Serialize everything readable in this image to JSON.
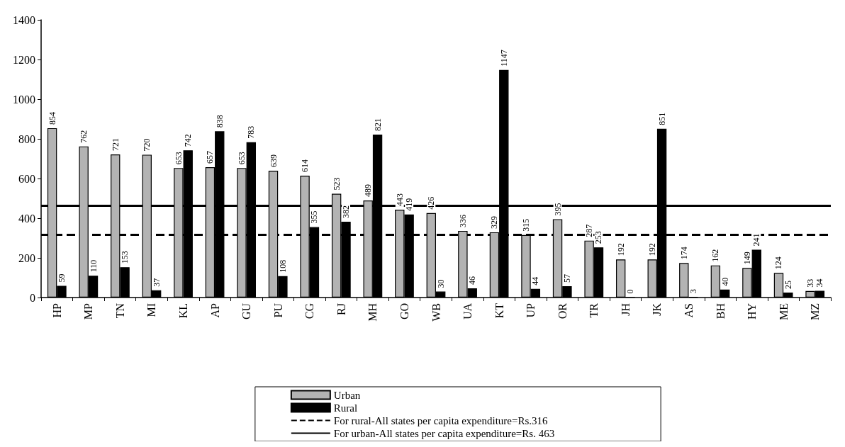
{
  "chart_data": {
    "type": "bar",
    "categories": [
      "HP",
      "MP",
      "TN",
      "MI",
      "KL",
      "AP",
      "GU",
      "PU",
      "CG",
      "RJ",
      "MH",
      "GO",
      "WB",
      "UA",
      "KT",
      "UP",
      "OR",
      "TR",
      "JH",
      "JK",
      "AS",
      "BH",
      "HY",
      "ME",
      "MZ"
    ],
    "series": [
      {
        "name": "Urban",
        "color": "#b3b3b3",
        "values": [
          854,
          762,
          721,
          720,
          653,
          657,
          653,
          639,
          614,
          523,
          489,
          443,
          426,
          336,
          329,
          315,
          395,
          287,
          192,
          192,
          174,
          162,
          149,
          124,
          33
        ]
      },
      {
        "name": "Rural",
        "color": "#000000",
        "values": [
          59,
          110,
          153,
          37,
          742,
          838,
          783,
          108,
          355,
          382,
          821,
          419,
          30,
          46,
          1147,
          44,
          57,
          253,
          0,
          851,
          3,
          40,
          241,
          25,
          34
        ]
      }
    ],
    "ref_lines": [
      {
        "axis": "y",
        "value": 316,
        "label": "For rural-All states per capita expenditure=Rs.316",
        "color": "#000000",
        "line_style": "dashed"
      },
      {
        "axis": "y",
        "value": 463,
        "label": "For urban-All states per capita expenditure=Rs. 463",
        "color": "#000000",
        "line_style": "solid"
      }
    ],
    "ylim": [
      0,
      1400
    ],
    "yticks": [
      0,
      200,
      400,
      600,
      800,
      1000,
      1200,
      1400
    ],
    "data_labels": true,
    "grid": false,
    "legend": "bottom"
  }
}
